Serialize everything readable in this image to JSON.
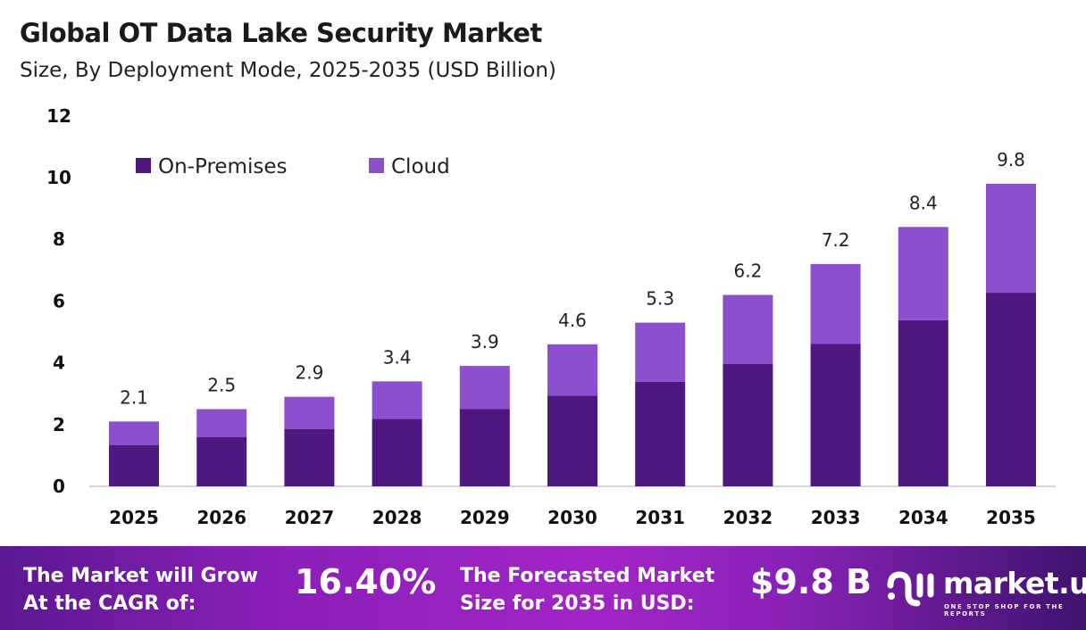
{
  "title": "Global OT Data Lake Security Market",
  "subtitle": "Size, By Deployment Mode, 2025-2035 (USD Billion)",
  "colors": {
    "on_premises": "#4e1880",
    "cloud": "#8c4fcd"
  },
  "chart_data": {
    "type": "bar",
    "stacked": true,
    "categories": [
      "2025",
      "2026",
      "2027",
      "2028",
      "2029",
      "2030",
      "2031",
      "2032",
      "2033",
      "2034",
      "2035"
    ],
    "series": [
      {
        "name": "On-Premises",
        "values": [
          1.34,
          1.6,
          1.86,
          2.18,
          2.5,
          2.94,
          3.39,
          3.97,
          4.61,
          5.38,
          6.27
        ]
      },
      {
        "name": "Cloud",
        "values": [
          0.76,
          0.9,
          1.04,
          1.22,
          1.4,
          1.66,
          1.91,
          2.23,
          2.59,
          3.02,
          3.53
        ]
      }
    ],
    "totals_labels": [
      "2.1",
      "2.5",
      "2.9",
      "3.4",
      "3.9",
      "4.6",
      "5.3",
      "6.2",
      "7.2",
      "8.4",
      "9.8"
    ],
    "yticks": [
      "0",
      "2",
      "4",
      "6",
      "8",
      "10",
      "12"
    ],
    "ylim": [
      0,
      12
    ],
    "grid": false,
    "legend": "top-left"
  },
  "banner": {
    "cagr_label_1": "The Market will Grow",
    "cagr_label_2": "At the CAGR of:",
    "cagr_value": "16.40%",
    "forecast_label_1": "The Forecasted Market",
    "forecast_label_2": "Size for 2035 in USD:",
    "forecast_value": "$9.8 B",
    "logo_name": "market.us",
    "logo_tagline": "ONE STOP SHOP FOR THE REPORTS"
  }
}
